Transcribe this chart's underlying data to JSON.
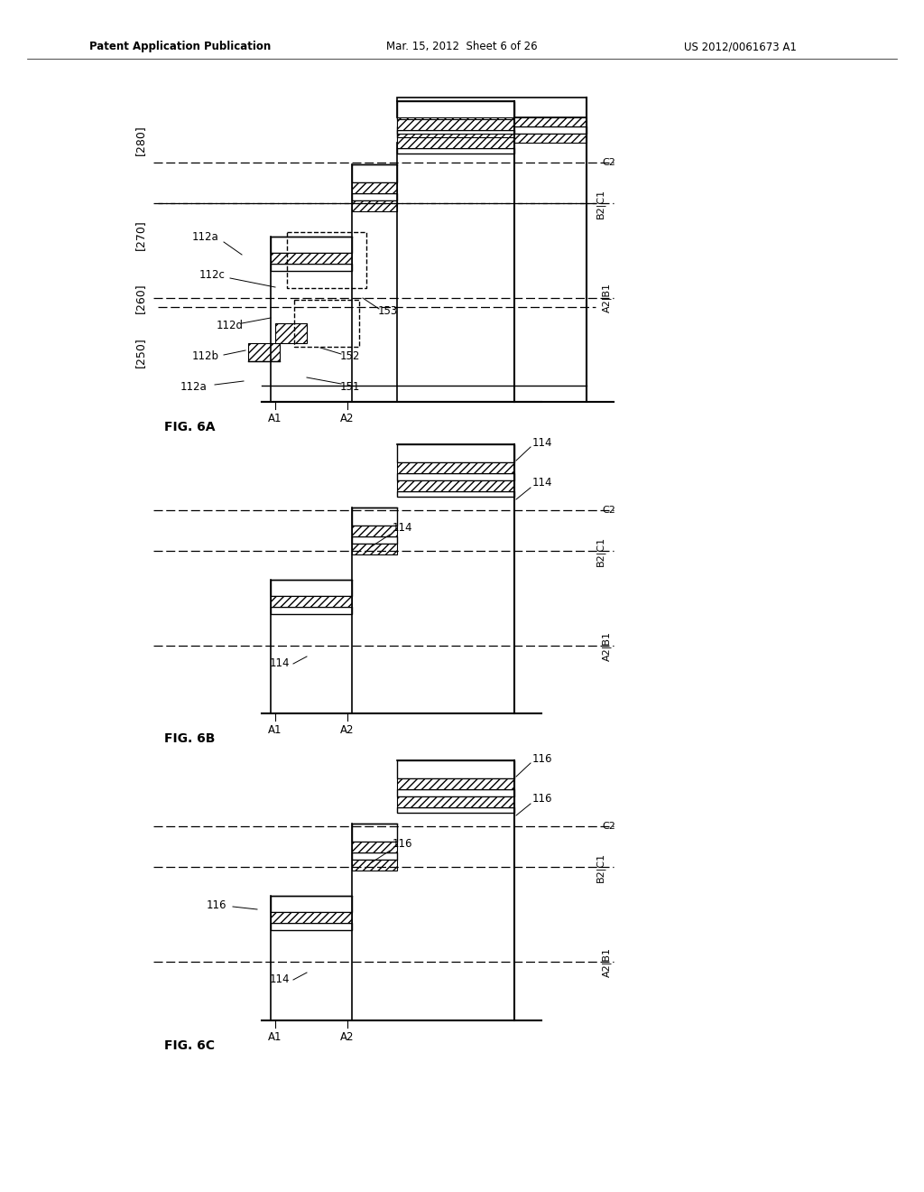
{
  "title_left": "Patent Application Publication",
  "title_mid": "Mar. 15, 2012  Sheet 6 of 26",
  "title_right": "US 2012/0061673 A1",
  "bg_color": "#ffffff",
  "fig_labels": [
    "FIG. 6A",
    "FIG. 6B",
    "FIG. 6C"
  ],
  "section_labels_6A": [
    "[250]",
    "[260]",
    "[270]",
    "[280]"
  ],
  "section_labels_6B": [],
  "ref_numbers_6A": [
    "112a",
    "112b",
    "112c",
    "112d",
    "151",
    "152",
    "153"
  ],
  "ref_numbers_6B": [
    "114"
  ],
  "ref_numbers_6C": [
    "116"
  ],
  "axis_labels": [
    "A1",
    "A2",
    "B1",
    "B2",
    "C1",
    "C2"
  ],
  "hatch_color": "#808080",
  "line_color": "#000000",
  "dashed_color": "#000000"
}
